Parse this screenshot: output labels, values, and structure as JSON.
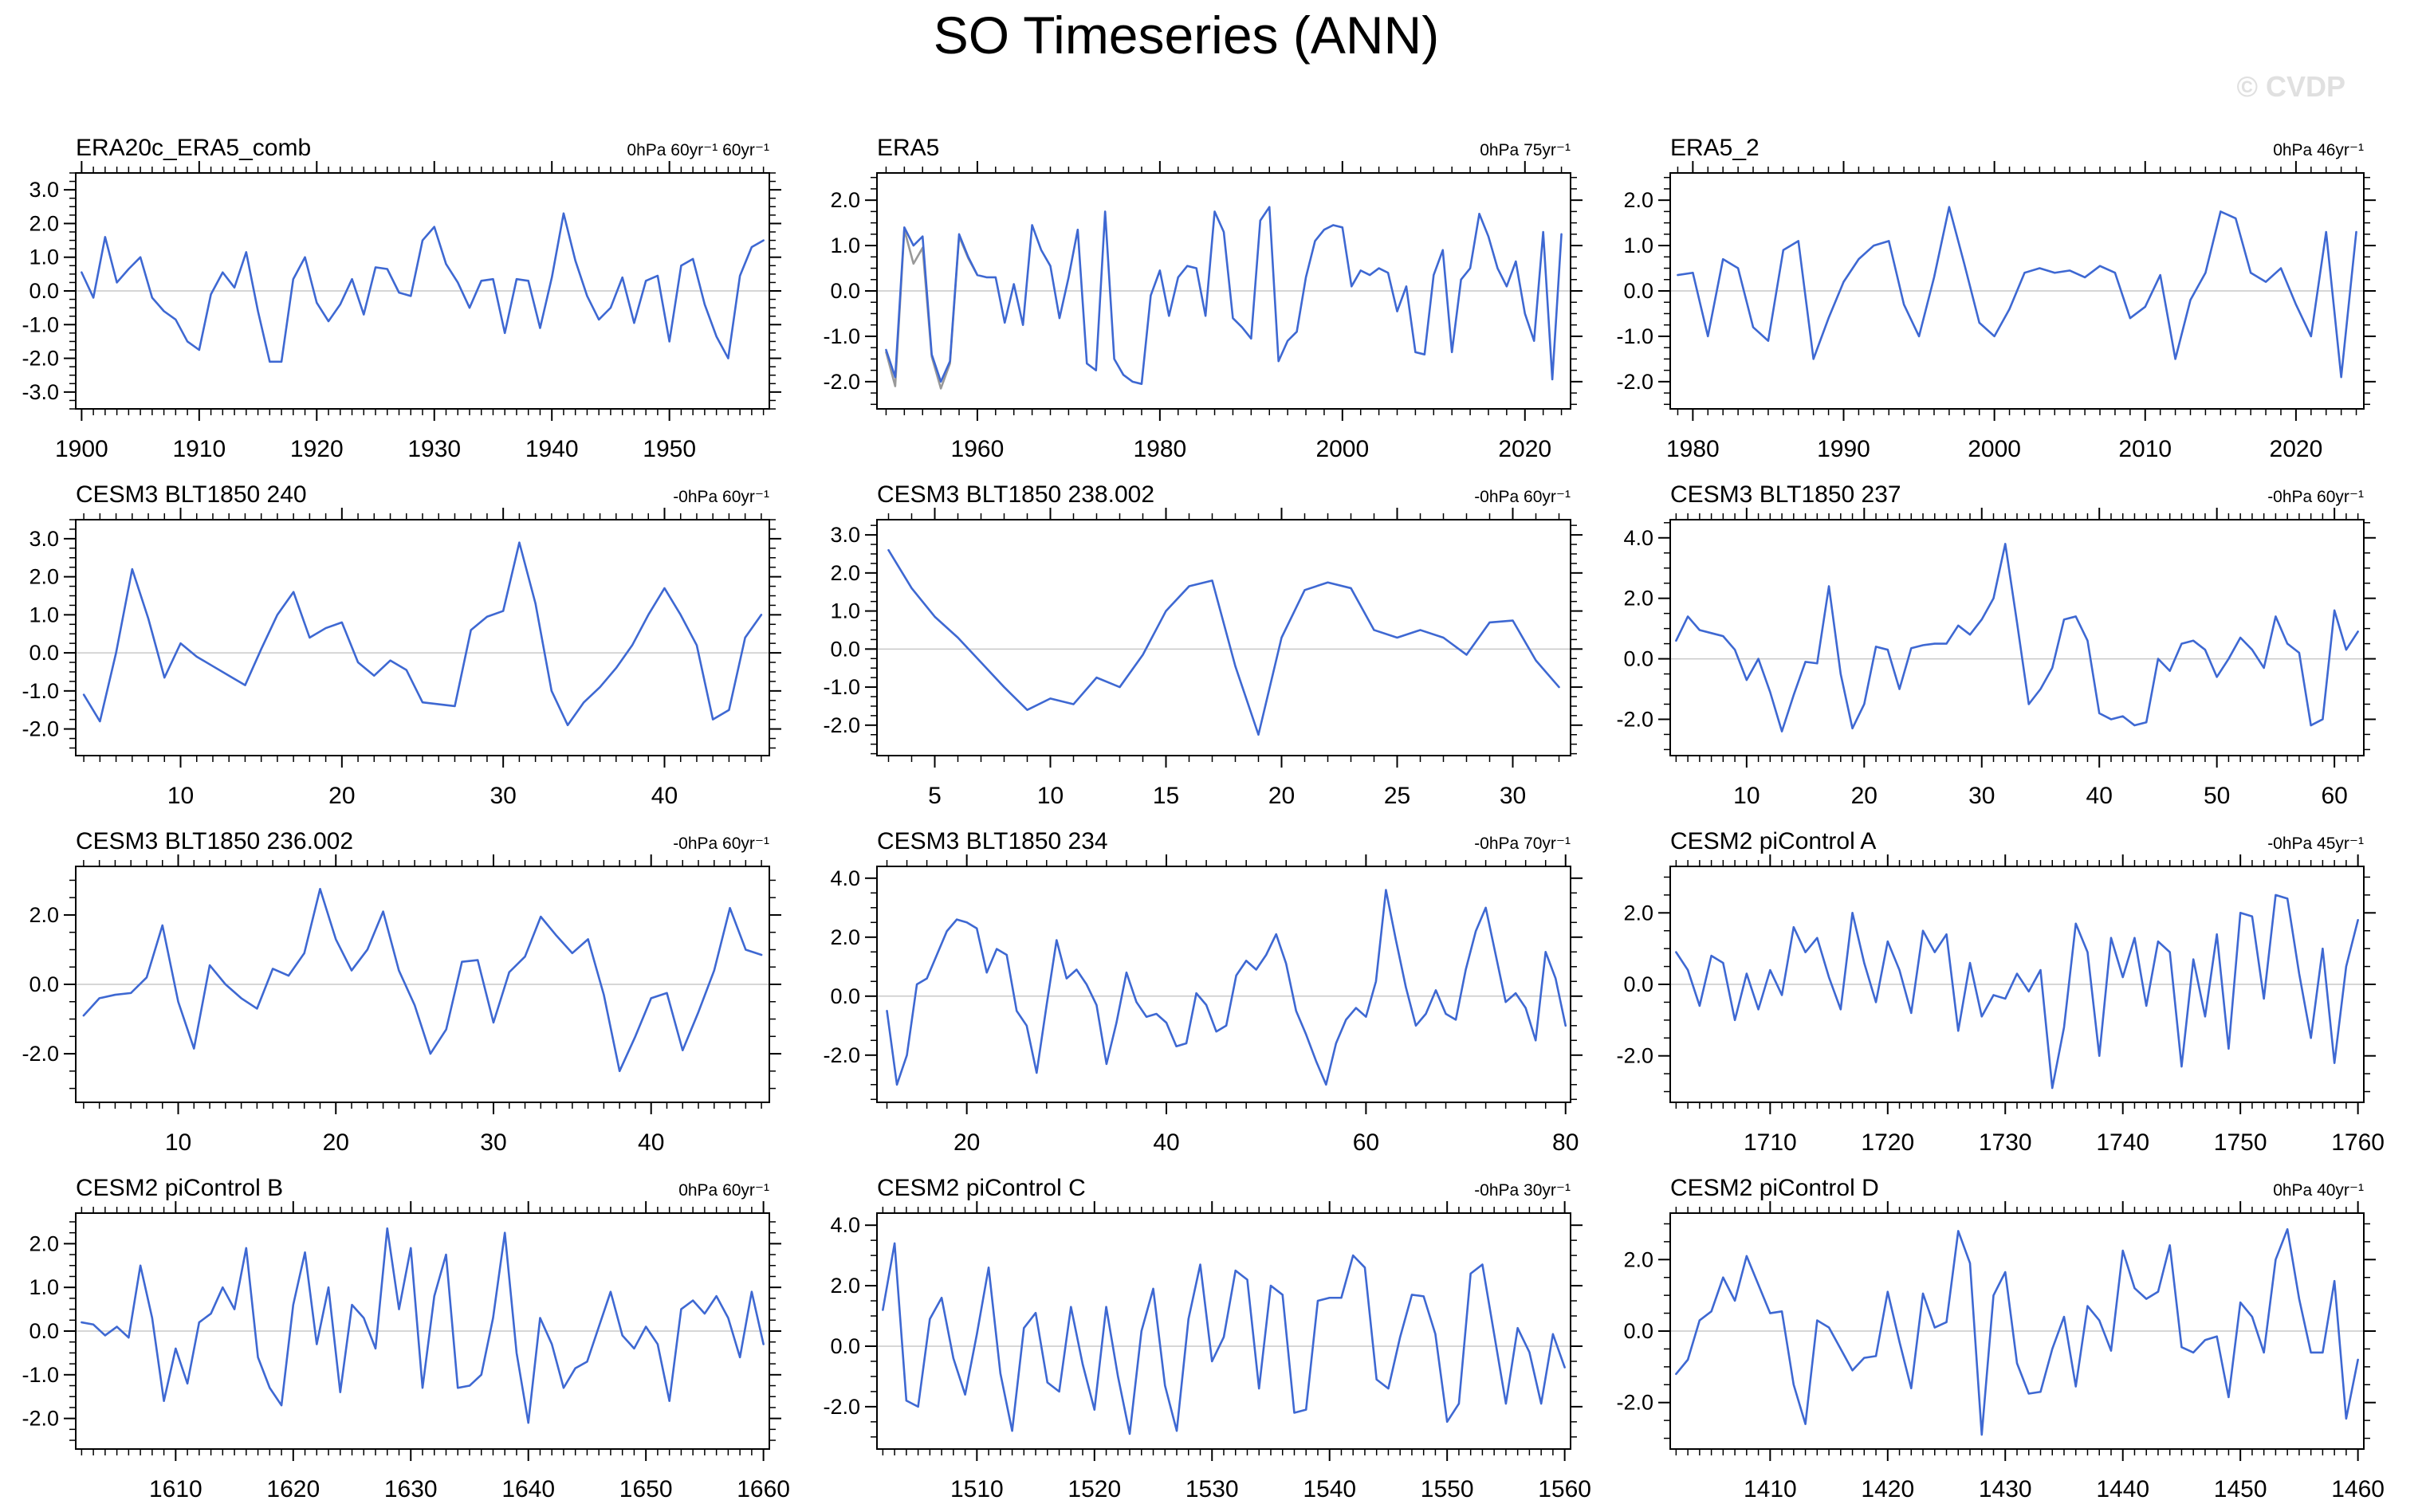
{
  "header": {
    "title": "SO Timeseries (ANN)",
    "watermark": "© CVDP"
  },
  "colors": {
    "line": "#3E68D2",
    "secondary_line": "#999999",
    "zero_line": "#c9c9c9",
    "axis": "#000000",
    "watermark": "#e0e0e0"
  },
  "chart_data": [
    {
      "type": "line",
      "title": "ERA20c_ERA5_comb",
      "units": "0hPa 60yr⁻¹ 60yr⁻¹",
      "x_start": 1900,
      "x_step": 1,
      "xlim": [
        1899.5,
        1958.5
      ],
      "xticks": [
        1900,
        1910,
        1920,
        1930,
        1940,
        1950
      ],
      "x_minor_step": 1,
      "ylim": [
        -3.5,
        3.5
      ],
      "yticks": [
        3.0,
        2.0,
        1.0,
        0.0,
        -1.0,
        -2.0,
        -3.0
      ],
      "y_minor_step": 0.25,
      "zero_line": true,
      "grid": false,
      "values": [
        0.55,
        -0.2,
        1.6,
        0.25,
        0.65,
        1.0,
        -0.2,
        -0.6,
        -0.85,
        -1.5,
        -1.75,
        -0.1,
        0.55,
        0.1,
        1.15,
        -0.6,
        -2.1,
        -2.1,
        0.35,
        1.0,
        -0.35,
        -0.9,
        -0.4,
        0.35,
        -0.7,
        0.7,
        0.65,
        -0.05,
        -0.15,
        1.5,
        1.9,
        0.8,
        0.25,
        -0.5,
        0.3,
        0.35,
        -1.25,
        0.35,
        0.3,
        -1.1,
        0.4,
        2.3,
        0.9,
        -0.15,
        -0.85,
        -0.5,
        0.4,
        -0.95,
        0.3,
        0.45,
        -1.5,
        0.75,
        0.95,
        -0.4,
        -1.35,
        -2.0,
        0.45,
        1.3,
        1.5
      ]
    },
    {
      "type": "line",
      "title": "ERA5",
      "units": "0hPa 75yr⁻¹",
      "x_start": 1950,
      "x_step": 1,
      "xlim": [
        1949,
        2025
      ],
      "xticks": [
        1960,
        1980,
        2000,
        2020
      ],
      "x_minor_step": 2,
      "ylim": [
        -2.6,
        2.6
      ],
      "yticks": [
        2.0,
        1.0,
        0.0,
        -1.0,
        -2.0
      ],
      "y_minor_step": 0.25,
      "zero_line": true,
      "grid": false,
      "values": [
        -1.3,
        -1.9,
        1.4,
        1.0,
        1.2,
        -1.4,
        -2.0,
        -1.55,
        1.25,
        0.75,
        0.35,
        0.3,
        0.3,
        -0.7,
        0.15,
        -0.75,
        1.45,
        0.9,
        0.55,
        -0.6,
        0.3,
        1.35,
        -1.6,
        -1.75,
        1.75,
        -1.5,
        -1.85,
        -2.0,
        -2.05,
        -0.1,
        0.45,
        -0.55,
        0.3,
        0.55,
        0.5,
        -0.55,
        1.75,
        1.3,
        -0.6,
        -0.8,
        -1.05,
        1.55,
        1.85,
        -1.55,
        -1.1,
        -0.9,
        0.3,
        1.1,
        1.35,
        1.45,
        1.4,
        0.1,
        0.45,
        0.35,
        0.5,
        0.4,
        -0.45,
        0.1,
        -1.35,
        -1.4,
        0.35,
        0.9,
        -1.35,
        0.25,
        0.5,
        1.7,
        1.2,
        0.5,
        0.1,
        0.65,
        -0.5,
        -1.1,
        1.3,
        -1.95,
        1.25
      ],
      "series2": {
        "x_start": 1950,
        "values": [
          -1.35,
          -2.1,
          1.35,
          0.6,
          0.95,
          -1.45,
          -2.15,
          -1.6,
          1.2,
          0.72,
          0.35
        ]
      }
    },
    {
      "type": "line",
      "title": "ERA5_2",
      "units": "0hPa 46yr⁻¹",
      "x_start": 1979,
      "x_step": 1,
      "xlim": [
        1978.5,
        2024.5
      ],
      "xticks": [
        1980,
        1990,
        2000,
        2010,
        2020
      ],
      "x_minor_step": 1,
      "ylim": [
        -2.6,
        2.6
      ],
      "yticks": [
        2.0,
        1.0,
        0.0,
        -1.0,
        -2.0
      ],
      "y_minor_step": 0.25,
      "zero_line": true,
      "grid": false,
      "values": [
        0.35,
        0.4,
        -1.0,
        0.7,
        0.5,
        -0.8,
        -1.1,
        0.9,
        1.1,
        -1.5,
        -0.6,
        0.2,
        0.7,
        1.0,
        1.1,
        -0.3,
        -1.0,
        0.3,
        1.85,
        0.6,
        -0.7,
        -1.0,
        -0.4,
        0.4,
        0.5,
        0.4,
        0.45,
        0.3,
        0.55,
        0.4,
        -0.6,
        -0.35,
        0.35,
        -1.5,
        -0.2,
        0.4,
        1.75,
        1.6,
        0.4,
        0.2,
        0.5,
        -0.3,
        -1.0,
        1.3,
        -1.9,
        1.3
      ]
    },
    {
      "type": "line",
      "title": "CESM3 BLT1850 240",
      "units": "-0hPa 60yr⁻¹",
      "x_start": 4,
      "x_step": 1,
      "xlim": [
        3.5,
        46.5
      ],
      "xticks": [
        10,
        20,
        30,
        40
      ],
      "x_minor_step": 1,
      "ylim": [
        -2.7,
        3.5
      ],
      "yticks": [
        3.0,
        2.0,
        1.0,
        0.0,
        -1.0,
        -2.0
      ],
      "y_minor_step": 0.25,
      "zero_line": true,
      "grid": false,
      "values": [
        -1.1,
        -1.8,
        0.0,
        2.2,
        0.9,
        -0.65,
        0.25,
        -0.1,
        -0.35,
        -0.6,
        -0.85,
        0.1,
        1.0,
        1.6,
        0.4,
        0.65,
        0.8,
        -0.25,
        -0.6,
        -0.2,
        -0.45,
        -1.3,
        -1.35,
        -1.4,
        0.6,
        0.95,
        1.1,
        2.9,
        1.3,
        -1.0,
        -1.9,
        -1.3,
        -0.9,
        -0.4,
        0.2,
        1.0,
        1.7,
        1.0,
        0.2,
        -1.75,
        -1.5,
        0.4,
        1.0
      ]
    },
    {
      "type": "line",
      "title": "CESM3 BLT1850 238.002",
      "units": "-0hPa 60yr⁻¹",
      "x_start": 3,
      "x_step": 1,
      "xlim": [
        2.5,
        32.5
      ],
      "xticks": [
        5,
        10,
        15,
        20,
        25,
        30
      ],
      "x_minor_step": 1,
      "ylim": [
        -2.8,
        3.4
      ],
      "yticks": [
        3.0,
        2.0,
        1.0,
        0.0,
        -1.0,
        -2.0
      ],
      "y_minor_step": 0.25,
      "zero_line": true,
      "grid": false,
      "values": [
        2.6,
        1.6,
        0.85,
        0.3,
        -0.35,
        -1.0,
        -1.6,
        -1.3,
        -1.45,
        -0.75,
        -1.0,
        -0.15,
        1.0,
        1.65,
        1.8,
        -0.45,
        -2.25,
        0.3,
        1.55,
        1.75,
        1.6,
        0.5,
        0.3,
        0.5,
        0.3,
        -0.15,
        0.7,
        0.75,
        -0.3,
        -1.0
      ]
    },
    {
      "type": "line",
      "title": "CESM3 BLT1850 237",
      "units": "-0hPa 60yr⁻¹",
      "x_start": 4,
      "x_step": 1,
      "xlim": [
        3.5,
        62.5
      ],
      "xticks": [
        10,
        20,
        30,
        40,
        50,
        60
      ],
      "x_minor_step": 1,
      "ylim": [
        -3.2,
        4.6
      ],
      "yticks": [
        4.0,
        2.0,
        0.0,
        -2.0
      ],
      "y_minor_step": 0.5,
      "zero_line": true,
      "grid": false,
      "values": [
        0.6,
        1.4,
        0.95,
        0.85,
        0.75,
        0.3,
        -0.7,
        0.0,
        -1.1,
        -2.4,
        -1.2,
        -0.1,
        -0.15,
        2.4,
        -0.5,
        -2.3,
        -1.5,
        0.4,
        0.3,
        -1.0,
        0.35,
        0.45,
        0.5,
        0.5,
        1.1,
        0.8,
        1.3,
        2.0,
        3.8,
        1.2,
        -1.5,
        -1.0,
        -0.3,
        1.3,
        1.4,
        0.6,
        -1.8,
        -2.0,
        -1.9,
        -2.2,
        -2.1,
        0.0,
        -0.4,
        0.5,
        0.6,
        0.3,
        -0.6,
        0.0,
        0.7,
        0.3,
        -0.3,
        1.4,
        0.5,
        0.2,
        -2.2,
        -2.0,
        1.6,
        0.3,
        0.9
      ]
    },
    {
      "type": "line",
      "title": "CESM3 BLT1850 236.002",
      "units": "-0hPa 60yr⁻¹",
      "x_start": 4,
      "x_step": 1,
      "xlim": [
        3.5,
        47.5
      ],
      "xticks": [
        10,
        20,
        30,
        40
      ],
      "x_minor_step": 1,
      "ylim": [
        -3.4,
        3.4
      ],
      "yticks": [
        2.0,
        0.0,
        -2.0
      ],
      "y_minor_step": 0.5,
      "zero_line": true,
      "grid": false,
      "values": [
        -0.9,
        -0.4,
        -0.3,
        -0.25,
        0.2,
        1.7,
        -0.5,
        -1.85,
        0.55,
        0.0,
        -0.4,
        -0.7,
        0.45,
        0.25,
        0.9,
        2.75,
        1.3,
        0.4,
        1.0,
        2.1,
        0.4,
        -0.6,
        -2.0,
        -1.3,
        0.65,
        0.7,
        -1.1,
        0.35,
        0.8,
        1.95,
        1.4,
        0.9,
        1.3,
        -0.3,
        -2.5,
        -1.5,
        -0.4,
        -0.25,
        -1.9,
        -0.8,
        0.4,
        2.2,
        1.0,
        0.85
      ]
    },
    {
      "type": "line",
      "title": "CESM3 BLT1850 234",
      "units": "-0hPa 70yr⁻¹",
      "x_start": 12,
      "x_step": 1,
      "xlim": [
        11,
        80.5
      ],
      "xticks": [
        20,
        40,
        60,
        80
      ],
      "x_minor_step": 2,
      "ylim": [
        -3.6,
        4.4
      ],
      "yticks": [
        4.0,
        2.0,
        0.0,
        -2.0
      ],
      "y_minor_step": 0.5,
      "zero_line": true,
      "grid": false,
      "values": [
        -0.5,
        -3.0,
        -2.0,
        0.4,
        0.6,
        1.4,
        2.2,
        2.6,
        2.5,
        2.3,
        0.8,
        1.6,
        1.4,
        -0.5,
        -1.0,
        -2.6,
        -0.3,
        1.9,
        0.6,
        0.9,
        0.4,
        -0.3,
        -2.3,
        -0.9,
        0.8,
        -0.2,
        -0.7,
        -0.6,
        -0.9,
        -1.7,
        -1.6,
        0.1,
        -0.3,
        -1.2,
        -1.0,
        0.7,
        1.2,
        0.9,
        1.4,
        2.1,
        1.1,
        -0.5,
        -1.3,
        -2.2,
        -3.0,
        -1.6,
        -0.8,
        -0.4,
        -0.7,
        0.5,
        3.6,
        1.9,
        0.3,
        -1.0,
        -0.6,
        0.2,
        -0.6,
        -0.8,
        0.9,
        2.2,
        3.0,
        1.4,
        -0.2,
        0.1,
        -0.4,
        -1.5,
        1.5,
        0.6,
        -1.0
      ]
    },
    {
      "type": "line",
      "title": "CESM2 piControl A",
      "units": "-0hPa 45yr⁻¹",
      "x_start": 1702,
      "x_step": 1,
      "xlim": [
        1701.5,
        1760.5
      ],
      "xticks": [
        1710,
        1720,
        1730,
        1740,
        1750,
        1760
      ],
      "x_minor_step": 1,
      "ylim": [
        -3.3,
        3.3
      ],
      "yticks": [
        2.0,
        0.0,
        -2.0
      ],
      "y_minor_step": 0.5,
      "zero_line": true,
      "grid": false,
      "values": [
        0.9,
        0.4,
        -0.6,
        0.8,
        0.6,
        -1.0,
        0.3,
        -0.7,
        0.4,
        -0.3,
        1.6,
        0.9,
        1.3,
        0.2,
        -0.7,
        2.0,
        0.6,
        -0.5,
        1.2,
        0.4,
        -0.8,
        1.5,
        0.9,
        1.4,
        -1.3,
        0.6,
        -0.9,
        -0.3,
        -0.4,
        0.3,
        -0.2,
        0.4,
        -2.9,
        -1.2,
        1.7,
        0.9,
        -2.0,
        1.3,
        0.2,
        1.3,
        -0.6,
        1.2,
        0.9,
        -2.3,
        0.7,
        -0.9,
        1.4,
        -1.8,
        2.0,
        1.9,
        -0.4,
        2.5,
        2.4,
        0.3,
        -1.5,
        1.0,
        -2.2,
        0.5,
        1.8
      ]
    },
    {
      "type": "line",
      "title": "CESM2 piControl B",
      "units": "0hPa 60yr⁻¹",
      "x_start": 1602,
      "x_step": 1,
      "xlim": [
        1601.5,
        1660.5
      ],
      "xticks": [
        1610,
        1620,
        1630,
        1640,
        1650,
        1660
      ],
      "x_minor_step": 1,
      "ylim": [
        -2.7,
        2.7
      ],
      "yticks": [
        2.0,
        1.0,
        0.0,
        -1.0,
        -2.0
      ],
      "y_minor_step": 0.25,
      "zero_line": true,
      "grid": false,
      "values": [
        0.2,
        0.15,
        -0.1,
        0.1,
        -0.15,
        1.5,
        0.3,
        -1.6,
        -0.4,
        -1.2,
        0.2,
        0.4,
        1.0,
        0.5,
        1.9,
        -0.6,
        -1.3,
        -1.7,
        0.6,
        1.8,
        -0.3,
        1.0,
        -1.4,
        0.6,
        0.3,
        -0.4,
        2.35,
        0.5,
        1.9,
        -1.3,
        0.8,
        1.75,
        -1.3,
        -1.25,
        -1.0,
        0.3,
        2.25,
        -0.5,
        -2.1,
        0.3,
        -0.3,
        -1.3,
        -0.85,
        -0.7,
        0.1,
        0.9,
        -0.1,
        -0.4,
        0.1,
        -0.3,
        -1.6,
        0.5,
        0.7,
        0.4,
        0.8,
        0.3,
        -0.6,
        0.9,
        -0.3
      ]
    },
    {
      "type": "line",
      "title": "CESM2 piControl C",
      "units": "-0hPa 30yr⁻¹",
      "x_start": 1502,
      "x_step": 1,
      "xlim": [
        1501.5,
        1560.5
      ],
      "xticks": [
        1510,
        1520,
        1530,
        1540,
        1550,
        1560
      ],
      "x_minor_step": 1,
      "ylim": [
        -3.4,
        4.4
      ],
      "yticks": [
        4.0,
        2.0,
        0.0,
        -2.0
      ],
      "y_minor_step": 0.5,
      "zero_line": true,
      "grid": false,
      "values": [
        1.2,
        3.4,
        -1.8,
        -2.0,
        0.9,
        1.6,
        -0.4,
        -1.6,
        0.4,
        2.6,
        -0.9,
        -2.8,
        0.6,
        1.1,
        -1.2,
        -1.5,
        1.3,
        -0.6,
        -2.1,
        1.3,
        -1.0,
        -2.9,
        0.5,
        1.9,
        -1.3,
        -2.8,
        0.9,
        2.7,
        -0.5,
        0.3,
        2.5,
        2.2,
        -1.4,
        2.0,
        1.7,
        -2.2,
        -2.1,
        1.5,
        1.6,
        1.6,
        3.0,
        2.6,
        -1.1,
        -1.4,
        0.3,
        1.7,
        1.65,
        0.4,
        -2.5,
        -1.9,
        2.4,
        2.7,
        0.4,
        -1.9,
        0.6,
        -0.2,
        -1.9,
        0.4,
        -0.7
      ]
    },
    {
      "type": "line",
      "title": "CESM2 piControl D",
      "units": "0hPa 40yr⁻¹",
      "x_start": 1402,
      "x_step": 1,
      "xlim": [
        1401.5,
        1460.5
      ],
      "xticks": [
        1410,
        1420,
        1430,
        1440,
        1450,
        1460
      ],
      "x_minor_step": 1,
      "ylim": [
        -3.3,
        3.3
      ],
      "yticks": [
        2.0,
        0.0,
        -2.0
      ],
      "y_minor_step": 0.5,
      "zero_line": true,
      "grid": false,
      "values": [
        -1.2,
        -0.8,
        0.3,
        0.55,
        1.5,
        0.85,
        2.1,
        1.3,
        0.5,
        0.55,
        -1.5,
        -2.6,
        0.3,
        0.1,
        -0.5,
        -1.1,
        -0.75,
        -0.7,
        1.1,
        -0.3,
        -1.6,
        1.05,
        0.1,
        0.25,
        2.8,
        1.9,
        -2.9,
        1.0,
        1.65,
        -0.9,
        -1.75,
        -1.7,
        -0.5,
        0.4,
        -1.55,
        0.7,
        0.3,
        -0.55,
        2.25,
        1.2,
        0.9,
        1.1,
        2.4,
        -0.45,
        -0.6,
        -0.25,
        -0.15,
        -1.85,
        0.8,
        0.4,
        -0.6,
        2.0,
        2.85,
        0.9,
        -0.6,
        -0.6,
        1.4,
        -2.45,
        -0.8
      ]
    }
  ]
}
